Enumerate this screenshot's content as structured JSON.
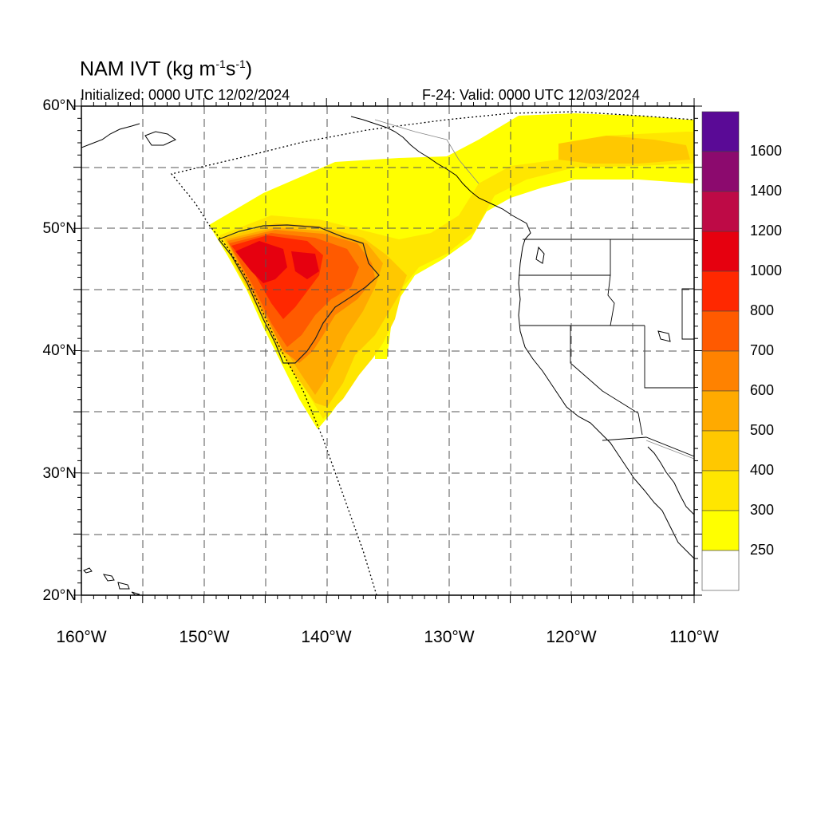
{
  "title": {
    "text": "NAM IVT (kg m",
    "sup1": "-1",
    "mid": "s",
    "sup2": "-1",
    "close": ")"
  },
  "init_text": "Initialized: 0000 UTC 12/02/2024",
  "valid_text": "F-24: Valid: 0000 UTC 12/03/2024",
  "lat_labels": [
    "60°N",
    "50°N",
    "40°N",
    "30°N",
    "20°N"
  ],
  "lon_labels": [
    "160°W",
    "150°W",
    "140°W",
    "130°W",
    "120°W",
    "110°W"
  ],
  "colorbar": {
    "labels": [
      "1600",
      "1400",
      "1200",
      "1000",
      "800",
      "700",
      "600",
      "500",
      "400",
      "300",
      "250"
    ],
    "colors": [
      "#5a0a96",
      "#8c0a6e",
      "#be0a46",
      "#e6000f",
      "#ff2800",
      "#ff5a00",
      "#ff8200",
      "#ffaa00",
      "#ffc800",
      "#ffe600",
      "#ffff00",
      "#ffffff"
    ]
  },
  "map": {
    "lat_range": [
      20,
      60
    ],
    "lon_range": [
      -160,
      -110
    ],
    "contour_level": 700
  }
}
